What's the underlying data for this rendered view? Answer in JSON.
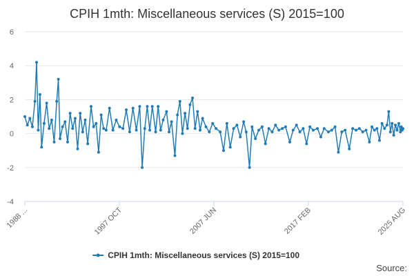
{
  "source_label": "Source:",
  "colors": {
    "series": "#1f7bb6",
    "grid": "#e6e6e6",
    "axis": "#ccd6eb",
    "text": "#666666"
  },
  "chart_data": {
    "type": "line",
    "title": "CPIH 1mth: Miscellaneous services (S) 2015=100",
    "xlabel": "",
    "ylabel": "",
    "ylim": [
      -4,
      6
    ],
    "y_ticks": [
      6,
      4,
      2,
      0,
      -2,
      -4
    ],
    "x_range": [
      "1988-01",
      "2025-08"
    ],
    "x_ticks": [
      "1988 ...",
      "1997 OCT",
      "2007 JUN",
      "2017 FEB",
      "2025 AUG"
    ],
    "grid": true,
    "legend": "bottom-center",
    "series": [
      {
        "name": "CPIH 1mth: Miscellaneous services (S) 2015=100",
        "markers": true,
        "points": [
          [
            "1988-01",
            1.0
          ],
          [
            "1988-04",
            0.5
          ],
          [
            "1988-07",
            0.9
          ],
          [
            "1988-10",
            0.4
          ],
          [
            "1989-01",
            1.9
          ],
          [
            "1989-03",
            4.2
          ],
          [
            "1989-05",
            0.2
          ],
          [
            "1989-07",
            2.3
          ],
          [
            "1989-09",
            -0.8
          ],
          [
            "1989-12",
            0.6
          ],
          [
            "1990-03",
            1.8
          ],
          [
            "1990-06",
            0.3
          ],
          [
            "1990-09",
            0.8
          ],
          [
            "1990-12",
            -0.5
          ],
          [
            "1991-03",
            1.9
          ],
          [
            "1991-05",
            3.2
          ],
          [
            "1991-07",
            -0.3
          ],
          [
            "1991-10",
            0.4
          ],
          [
            "1992-01",
            0.7
          ],
          [
            "1992-04",
            -0.5
          ],
          [
            "1992-07",
            1.2
          ],
          [
            "1992-10",
            0.3
          ],
          [
            "1993-01",
            0.9
          ],
          [
            "1993-04",
            -0.9
          ],
          [
            "1993-07",
            1.2
          ],
          [
            "1993-10",
            0.1
          ],
          [
            "1994-01",
            0.8
          ],
          [
            "1994-04",
            -0.6
          ],
          [
            "1994-08",
            1.6
          ],
          [
            "1994-11",
            0.4
          ],
          [
            "1995-02",
            0.6
          ],
          [
            "1995-05",
            -1.1
          ],
          [
            "1995-08",
            1.1
          ],
          [
            "1995-11",
            0.3
          ],
          [
            "1996-02",
            0.2
          ],
          [
            "1996-06",
            1.5
          ],
          [
            "1996-10",
            0.2
          ],
          [
            "1997-02",
            0.8
          ],
          [
            "1997-06",
            0.4
          ],
          [
            "1997-10",
            0.3
          ],
          [
            "1998-02",
            1.4
          ],
          [
            "1998-06",
            0.1
          ],
          [
            "1998-10",
            1.5
          ],
          [
            "1999-02",
            0.2
          ],
          [
            "1999-06",
            1.6
          ],
          [
            "1999-09",
            -2.0
          ],
          [
            "1999-12",
            0.3
          ],
          [
            "2000-03",
            1.6
          ],
          [
            "2000-06",
            0.2
          ],
          [
            "2000-09",
            1.6
          ],
          [
            "2001-01",
            0.1
          ],
          [
            "2001-04",
            1.6
          ],
          [
            "2001-07",
            0.2
          ],
          [
            "2001-10",
            0.8
          ],
          [
            "2002-02",
            1.3
          ],
          [
            "2002-05",
            0.1
          ],
          [
            "2002-08",
            0.7
          ],
          [
            "2002-12",
            -1.3
          ],
          [
            "2003-03",
            1.1
          ],
          [
            "2003-06",
            1.9
          ],
          [
            "2003-09",
            0.0
          ],
          [
            "2003-12",
            1.2
          ],
          [
            "2004-03",
            0.3
          ],
          [
            "2004-06",
            1.7
          ],
          [
            "2004-09",
            2.1
          ],
          [
            "2004-12",
            0.3
          ],
          [
            "2005-03",
            1.3
          ],
          [
            "2005-06",
            0.2
          ],
          [
            "2005-09",
            0.9
          ],
          [
            "2006-01",
            0.4
          ],
          [
            "2006-05",
            0.1
          ],
          [
            "2006-09",
            0.6
          ],
          [
            "2007-01",
            0.3
          ],
          [
            "2007-06",
            0.1
          ],
          [
            "2007-10",
            -1.0
          ],
          [
            "2008-02",
            0.6
          ],
          [
            "2008-06",
            -0.8
          ],
          [
            "2008-10",
            0.3
          ],
          [
            "2009-02",
            0.5
          ],
          [
            "2009-06",
            -0.2
          ],
          [
            "2009-10",
            0.7
          ],
          [
            "2010-01",
            0.1
          ],
          [
            "2010-05",
            -2.0
          ],
          [
            "2010-08",
            0.4
          ],
          [
            "2010-12",
            -0.3
          ],
          [
            "2011-04",
            0.2
          ],
          [
            "2011-08",
            0.4
          ],
          [
            "2011-12",
            -0.6
          ],
          [
            "2012-04",
            0.3
          ],
          [
            "2012-08",
            0.1
          ],
          [
            "2012-12",
            0.5
          ],
          [
            "2013-04",
            0.2
          ],
          [
            "2013-08",
            0.3
          ],
          [
            "2013-12",
            0.4
          ],
          [
            "2014-05",
            -0.5
          ],
          [
            "2014-09",
            0.2
          ],
          [
            "2015-01",
            0.5
          ],
          [
            "2015-05",
            0.1
          ],
          [
            "2015-09",
            0.3
          ],
          [
            "2016-01",
            -0.6
          ],
          [
            "2016-05",
            0.4
          ],
          [
            "2016-09",
            0.2
          ],
          [
            "2017-02",
            0.3
          ],
          [
            "2017-06",
            -0.2
          ],
          [
            "2017-10",
            0.3
          ],
          [
            "2018-03",
            0.1
          ],
          [
            "2018-07",
            0.2
          ],
          [
            "2018-11",
            0.4
          ],
          [
            "2019-03",
            -1.1
          ],
          [
            "2019-07",
            0.1
          ],
          [
            "2019-11",
            0.2
          ],
          [
            "2020-04",
            -0.9
          ],
          [
            "2020-08",
            0.3
          ],
          [
            "2020-12",
            0.2
          ],
          [
            "2021-04",
            0.3
          ],
          [
            "2021-08",
            0.1
          ],
          [
            "2021-12",
            0.2
          ],
          [
            "2022-04",
            -0.5
          ],
          [
            "2022-07",
            0.4
          ],
          [
            "2022-10",
            0.2
          ],
          [
            "2023-01",
            0.3
          ],
          [
            "2023-04",
            -0.4
          ],
          [
            "2023-07",
            0.6
          ],
          [
            "2023-10",
            0.3
          ],
          [
            "2024-01",
            0.5
          ],
          [
            "2024-03",
            1.3
          ],
          [
            "2024-05",
            0.1
          ],
          [
            "2024-07",
            0.6
          ],
          [
            "2024-09",
            -0.1
          ],
          [
            "2024-11",
            0.5
          ],
          [
            "2025-01",
            0.2
          ],
          [
            "2025-03",
            0.6
          ],
          [
            "2025-05",
            0.1
          ],
          [
            "2025-06",
            0.4
          ],
          [
            "2025-07",
            0.2
          ],
          [
            "2025-08",
            0.3
          ]
        ]
      }
    ]
  }
}
